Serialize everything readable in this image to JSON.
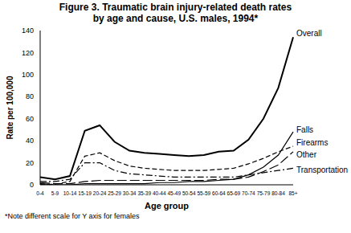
{
  "chart_data": {
    "type": "line",
    "title": "Figure 3. Traumatic brain injury-related death rates by age and cause, U.S. males, 1994*",
    "xlabel": "Age group",
    "ylabel": "Rate per 100,000",
    "footnote": "*Note different scale for Y axis for females",
    "categories": [
      "0-4",
      "5-9",
      "10-14",
      "15-19",
      "20-24",
      "25-29",
      "30-34",
      "35-39",
      "40-44",
      "45-49",
      "50-54",
      "55-59",
      "60-64",
      "65-69",
      "70-74",
      "75-79",
      "80-84",
      "85+"
    ],
    "series": [
      {
        "name": "Overall",
        "color": "#000000",
        "line_style": "solid",
        "values": [
          7,
          5,
          8,
          49,
          54,
          39,
          31,
          29,
          28,
          27,
          26,
          27,
          30,
          31,
          41,
          60,
          88,
          134
        ]
      },
      {
        "name": "Falls",
        "color": "#000000",
        "line_style": "solid",
        "values": [
          1,
          0,
          0,
          1,
          1,
          1,
          1,
          1,
          2,
          2,
          3,
          3,
          4,
          5,
          9,
          16,
          27,
          48
        ]
      },
      {
        "name": "Firearms",
        "color": "#000000",
        "line_style": "dashed",
        "values": [
          0.5,
          0.5,
          3,
          26,
          29,
          22,
          17,
          15,
          14,
          13,
          13,
          13,
          14,
          15,
          19,
          24,
          30,
          35
        ]
      },
      {
        "name": "Other",
        "color": "#000000",
        "line_style": "longdash",
        "values": [
          2,
          1,
          1,
          3,
          4,
          4,
          4,
          4,
          4,
          4,
          4,
          4,
          5,
          5,
          7,
          12,
          18,
          30
        ]
      },
      {
        "name": "Transportation",
        "color": "#000000",
        "line_style": "dashdot",
        "values": [
          3,
          3,
          5,
          20,
          20,
          13,
          10,
          9,
          8,
          7,
          7,
          7,
          7,
          7,
          9,
          11,
          13,
          15
        ]
      }
    ],
    "ylim": [
      0,
      140
    ],
    "yticks": [
      0,
      20,
      40,
      60,
      80,
      100,
      120,
      140
    ],
    "grid": false
  }
}
